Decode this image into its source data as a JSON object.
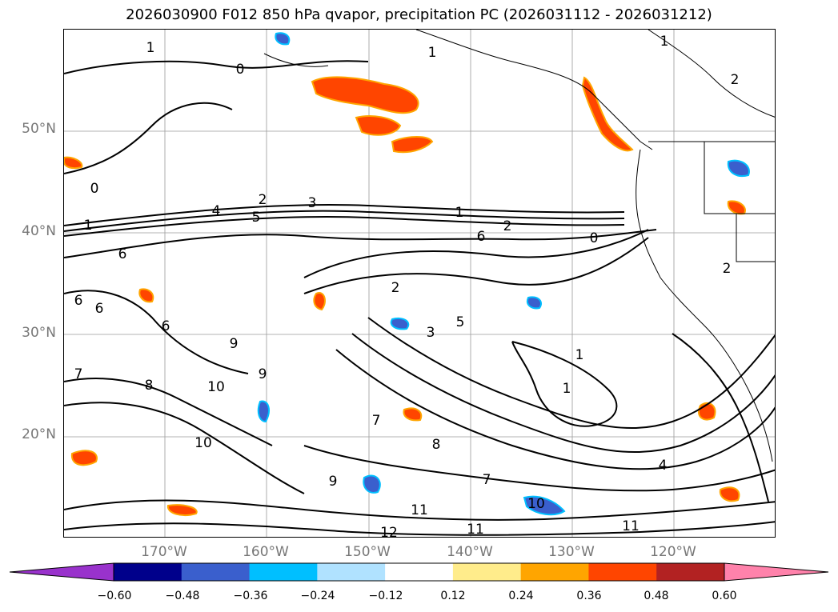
{
  "title": "2026030900 F012 850 hPa qvapor, precipitation PC (2026031112 - 2026031212)",
  "map": {
    "lat_labels": [
      "50°N",
      "40°N",
      "30°N",
      "20°N"
    ],
    "lon_labels": [
      "170°W",
      "160°W",
      "150°W",
      "140°W",
      "130°W",
      "120°W"
    ]
  },
  "contour_labels": [
    {
      "t": "1"
    },
    {
      "t": "0"
    },
    {
      "t": "1"
    },
    {
      "t": "1"
    },
    {
      "t": "2"
    },
    {
      "t": "0"
    },
    {
      "t": "1"
    },
    {
      "t": "2"
    },
    {
      "t": "4"
    },
    {
      "t": "5"
    },
    {
      "t": "3"
    },
    {
      "t": "1"
    },
    {
      "t": "6"
    },
    {
      "t": "2"
    },
    {
      "t": "0"
    },
    {
      "t": "6"
    },
    {
      "t": "6"
    },
    {
      "t": "6"
    },
    {
      "t": "2"
    },
    {
      "t": "3"
    },
    {
      "t": "5"
    },
    {
      "t": "6"
    },
    {
      "t": "9"
    },
    {
      "t": "9"
    },
    {
      "t": "10"
    },
    {
      "t": "8"
    },
    {
      "t": "7"
    },
    {
      "t": "1"
    },
    {
      "t": "1"
    },
    {
      "t": "10"
    },
    {
      "t": "7"
    },
    {
      "t": "8"
    },
    {
      "t": "9"
    },
    {
      "t": "7"
    },
    {
      "t": "10"
    },
    {
      "t": "11"
    },
    {
      "t": "12"
    },
    {
      "t": "11"
    },
    {
      "t": "11"
    },
    {
      "t": "4"
    },
    {
      "t": "2"
    }
  ],
  "colorbar": {
    "colors": [
      "#9932cc",
      "#00008b",
      "#3a5fcd",
      "#00bfff",
      "#b0e2ff",
      "#ffffff",
      "#ffec8b",
      "#ffa500",
      "#ff4500",
      "#b22222",
      "#ff82ab"
    ],
    "ticks": [
      "−0.60",
      "−0.48",
      "−0.36",
      "−0.24",
      "−0.12",
      "0.12",
      "0.24",
      "0.36",
      "0.48",
      "0.60"
    ]
  }
}
